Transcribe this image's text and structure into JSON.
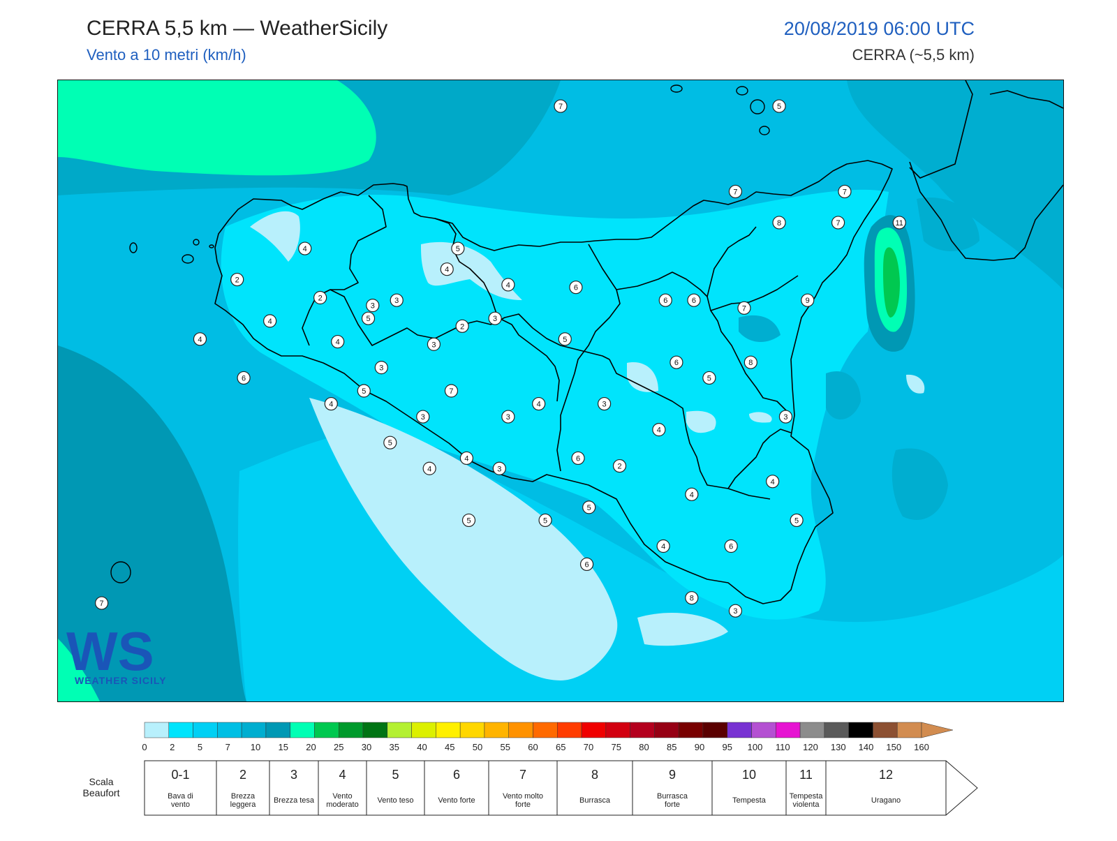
{
  "header": {
    "title": "CERRA 5,5 km — WeatherSicily",
    "subtitle": "Vento a 10 metri (km/h)",
    "datetime": "20/08/2019 06:00 UTC",
    "model": "CERRA (~5,5 km)"
  },
  "logo": {
    "text": "WS",
    "subtext": "WEATHER SICILY"
  },
  "colorscale": {
    "ticks": [
      "0",
      "2",
      "5",
      "7",
      "10",
      "15",
      "20",
      "25",
      "30",
      "35",
      "40",
      "45",
      "50",
      "55",
      "60",
      "65",
      "70",
      "75",
      "80",
      "85",
      "90",
      "95",
      "100",
      "110",
      "120",
      "130",
      "140",
      "150",
      "160"
    ],
    "colors": [
      "#b8f0fc",
      "#00e4fc",
      "#00d0f4",
      "#00bfe4",
      "#00aed0",
      "#0098b4",
      "#00ffb4",
      "#00c850",
      "#009a2c",
      "#007414",
      "#b4f032",
      "#dcf000",
      "#fff000",
      "#ffd700",
      "#ffb400",
      "#ff9200",
      "#ff6a00",
      "#ff3c00",
      "#f00000",
      "#d20010",
      "#b4001e",
      "#960014",
      "#780000",
      "#5a0000",
      "#7832d2",
      "#b450d2",
      "#e614d2",
      "#8c8c8c",
      "#5a5a5a",
      "#000000",
      "#8c5032",
      "#d28c50"
    ]
  },
  "beaufort": {
    "label": "Scala Beaufort",
    "cells": [
      {
        "num": "0-1",
        "desc": "Bava di vento"
      },
      {
        "num": "2",
        "desc": "Brezza leggera"
      },
      {
        "num": "3",
        "desc": "Brezza tesa"
      },
      {
        "num": "4",
        "desc": "Vento moderato"
      },
      {
        "num": "5",
        "desc": "Vento teso"
      },
      {
        "num": "6",
        "desc": "Vento forte"
      },
      {
        "num": "7",
        "desc": "Vento molto forte"
      },
      {
        "num": "8",
        "desc": "Burrasca"
      },
      {
        "num": "9",
        "desc": "Burrasca forte"
      },
      {
        "num": "10",
        "desc": "Tempesta"
      },
      {
        "num": "11",
        "desc": "Tempesta violenta"
      },
      {
        "num": "12",
        "desc": "Uragano"
      }
    ]
  },
  "stations": [
    {
      "v": "7",
      "lon": 14.0,
      "lat": 38.75
    },
    {
      "v": "5",
      "lon": 15.0,
      "lat": 38.75
    },
    {
      "v": "4",
      "lon": 12.83,
      "lat": 38.2
    },
    {
      "v": "5",
      "lon": 13.53,
      "lat": 38.2
    },
    {
      "v": "4",
      "lon": 13.48,
      "lat": 38.12
    },
    {
      "v": "7",
      "lon": 14.8,
      "lat": 38.42
    },
    {
      "v": "7",
      "lon": 15.3,
      "lat": 38.42
    },
    {
      "v": "8",
      "lon": 15.0,
      "lat": 38.3
    },
    {
      "v": "7",
      "lon": 15.27,
      "lat": 38.3
    },
    {
      "v": "11",
      "lon": 15.55,
      "lat": 38.3
    },
    {
      "v": "2",
      "lon": 12.52,
      "lat": 38.08
    },
    {
      "v": "2",
      "lon": 12.9,
      "lat": 38.01
    },
    {
      "v": "3",
      "lon": 13.14,
      "lat": 37.98
    },
    {
      "v": "3",
      "lon": 13.25,
      "lat": 38.0
    },
    {
      "v": "4",
      "lon": 13.76,
      "lat": 38.06
    },
    {
      "v": "6",
      "lon": 14.07,
      "lat": 38.05
    },
    {
      "v": "6",
      "lon": 14.48,
      "lat": 38.0
    },
    {
      "v": "6",
      "lon": 14.61,
      "lat": 38.0
    },
    {
      "v": "7",
      "lon": 14.84,
      "lat": 37.97
    },
    {
      "v": "9",
      "lon": 15.13,
      "lat": 38.0
    },
    {
      "v": "4",
      "lon": 12.67,
      "lat": 37.92
    },
    {
      "v": "5",
      "lon": 13.12,
      "lat": 37.93
    },
    {
      "v": "3",
      "lon": 13.42,
      "lat": 37.83
    },
    {
      "v": "3",
      "lon": 13.7,
      "lat": 37.93
    },
    {
      "v": "2",
      "lon": 13.55,
      "lat": 37.9
    },
    {
      "v": "4",
      "lon": 12.35,
      "lat": 37.85
    },
    {
      "v": "4",
      "lon": 12.98,
      "lat": 37.84
    },
    {
      "v": "3",
      "lon": 13.18,
      "lat": 37.74
    },
    {
      "v": "5",
      "lon": 14.02,
      "lat": 37.85
    },
    {
      "v": "6",
      "lon": 14.53,
      "lat": 37.76
    },
    {
      "v": "8",
      "lon": 14.87,
      "lat": 37.76
    },
    {
      "v": "6",
      "lon": 12.55,
      "lat": 37.7
    },
    {
      "v": "5",
      "lon": 13.1,
      "lat": 37.65
    },
    {
      "v": "7",
      "lon": 13.5,
      "lat": 37.65
    },
    {
      "v": "5",
      "lon": 14.68,
      "lat": 37.7
    },
    {
      "v": "4",
      "lon": 12.95,
      "lat": 37.6
    },
    {
      "v": "4",
      "lon": 13.9,
      "lat": 37.6
    },
    {
      "v": "3",
      "lon": 14.2,
      "lat": 37.6
    },
    {
      "v": "3",
      "lon": 13.37,
      "lat": 37.55
    },
    {
      "v": "3",
      "lon": 13.76,
      "lat": 37.55
    },
    {
      "v": "3",
      "lon": 15.03,
      "lat": 37.55
    },
    {
      "v": "4",
      "lon": 14.45,
      "lat": 37.5
    },
    {
      "v": "5",
      "lon": 13.22,
      "lat": 37.45
    },
    {
      "v": "4",
      "lon": 13.57,
      "lat": 37.39
    },
    {
      "v": "6",
      "lon": 14.08,
      "lat": 37.39
    },
    {
      "v": "2",
      "lon": 14.27,
      "lat": 37.36
    },
    {
      "v": "4",
      "lon": 13.4,
      "lat": 37.35
    },
    {
      "v": "3",
      "lon": 13.72,
      "lat": 37.35
    },
    {
      "v": "4",
      "lon": 14.97,
      "lat": 37.3
    },
    {
      "v": "4",
      "lon": 14.6,
      "lat": 37.25
    },
    {
      "v": "5",
      "lon": 14.13,
      "lat": 37.2
    },
    {
      "v": "5",
      "lon": 13.58,
      "lat": 37.15
    },
    {
      "v": "5",
      "lon": 13.93,
      "lat": 37.15
    },
    {
      "v": "5",
      "lon": 15.08,
      "lat": 37.15
    },
    {
      "v": "4",
      "lon": 14.47,
      "lat": 37.05
    },
    {
      "v": "6",
      "lon": 14.78,
      "lat": 37.05
    },
    {
      "v": "6",
      "lon": 14.12,
      "lat": 36.98
    },
    {
      "v": "8",
      "lon": 14.6,
      "lat": 36.85
    },
    {
      "v": "3",
      "lon": 14.8,
      "lat": 36.8
    },
    {
      "v": "7",
      "lon": 11.9,
      "lat": 36.83
    }
  ]
}
